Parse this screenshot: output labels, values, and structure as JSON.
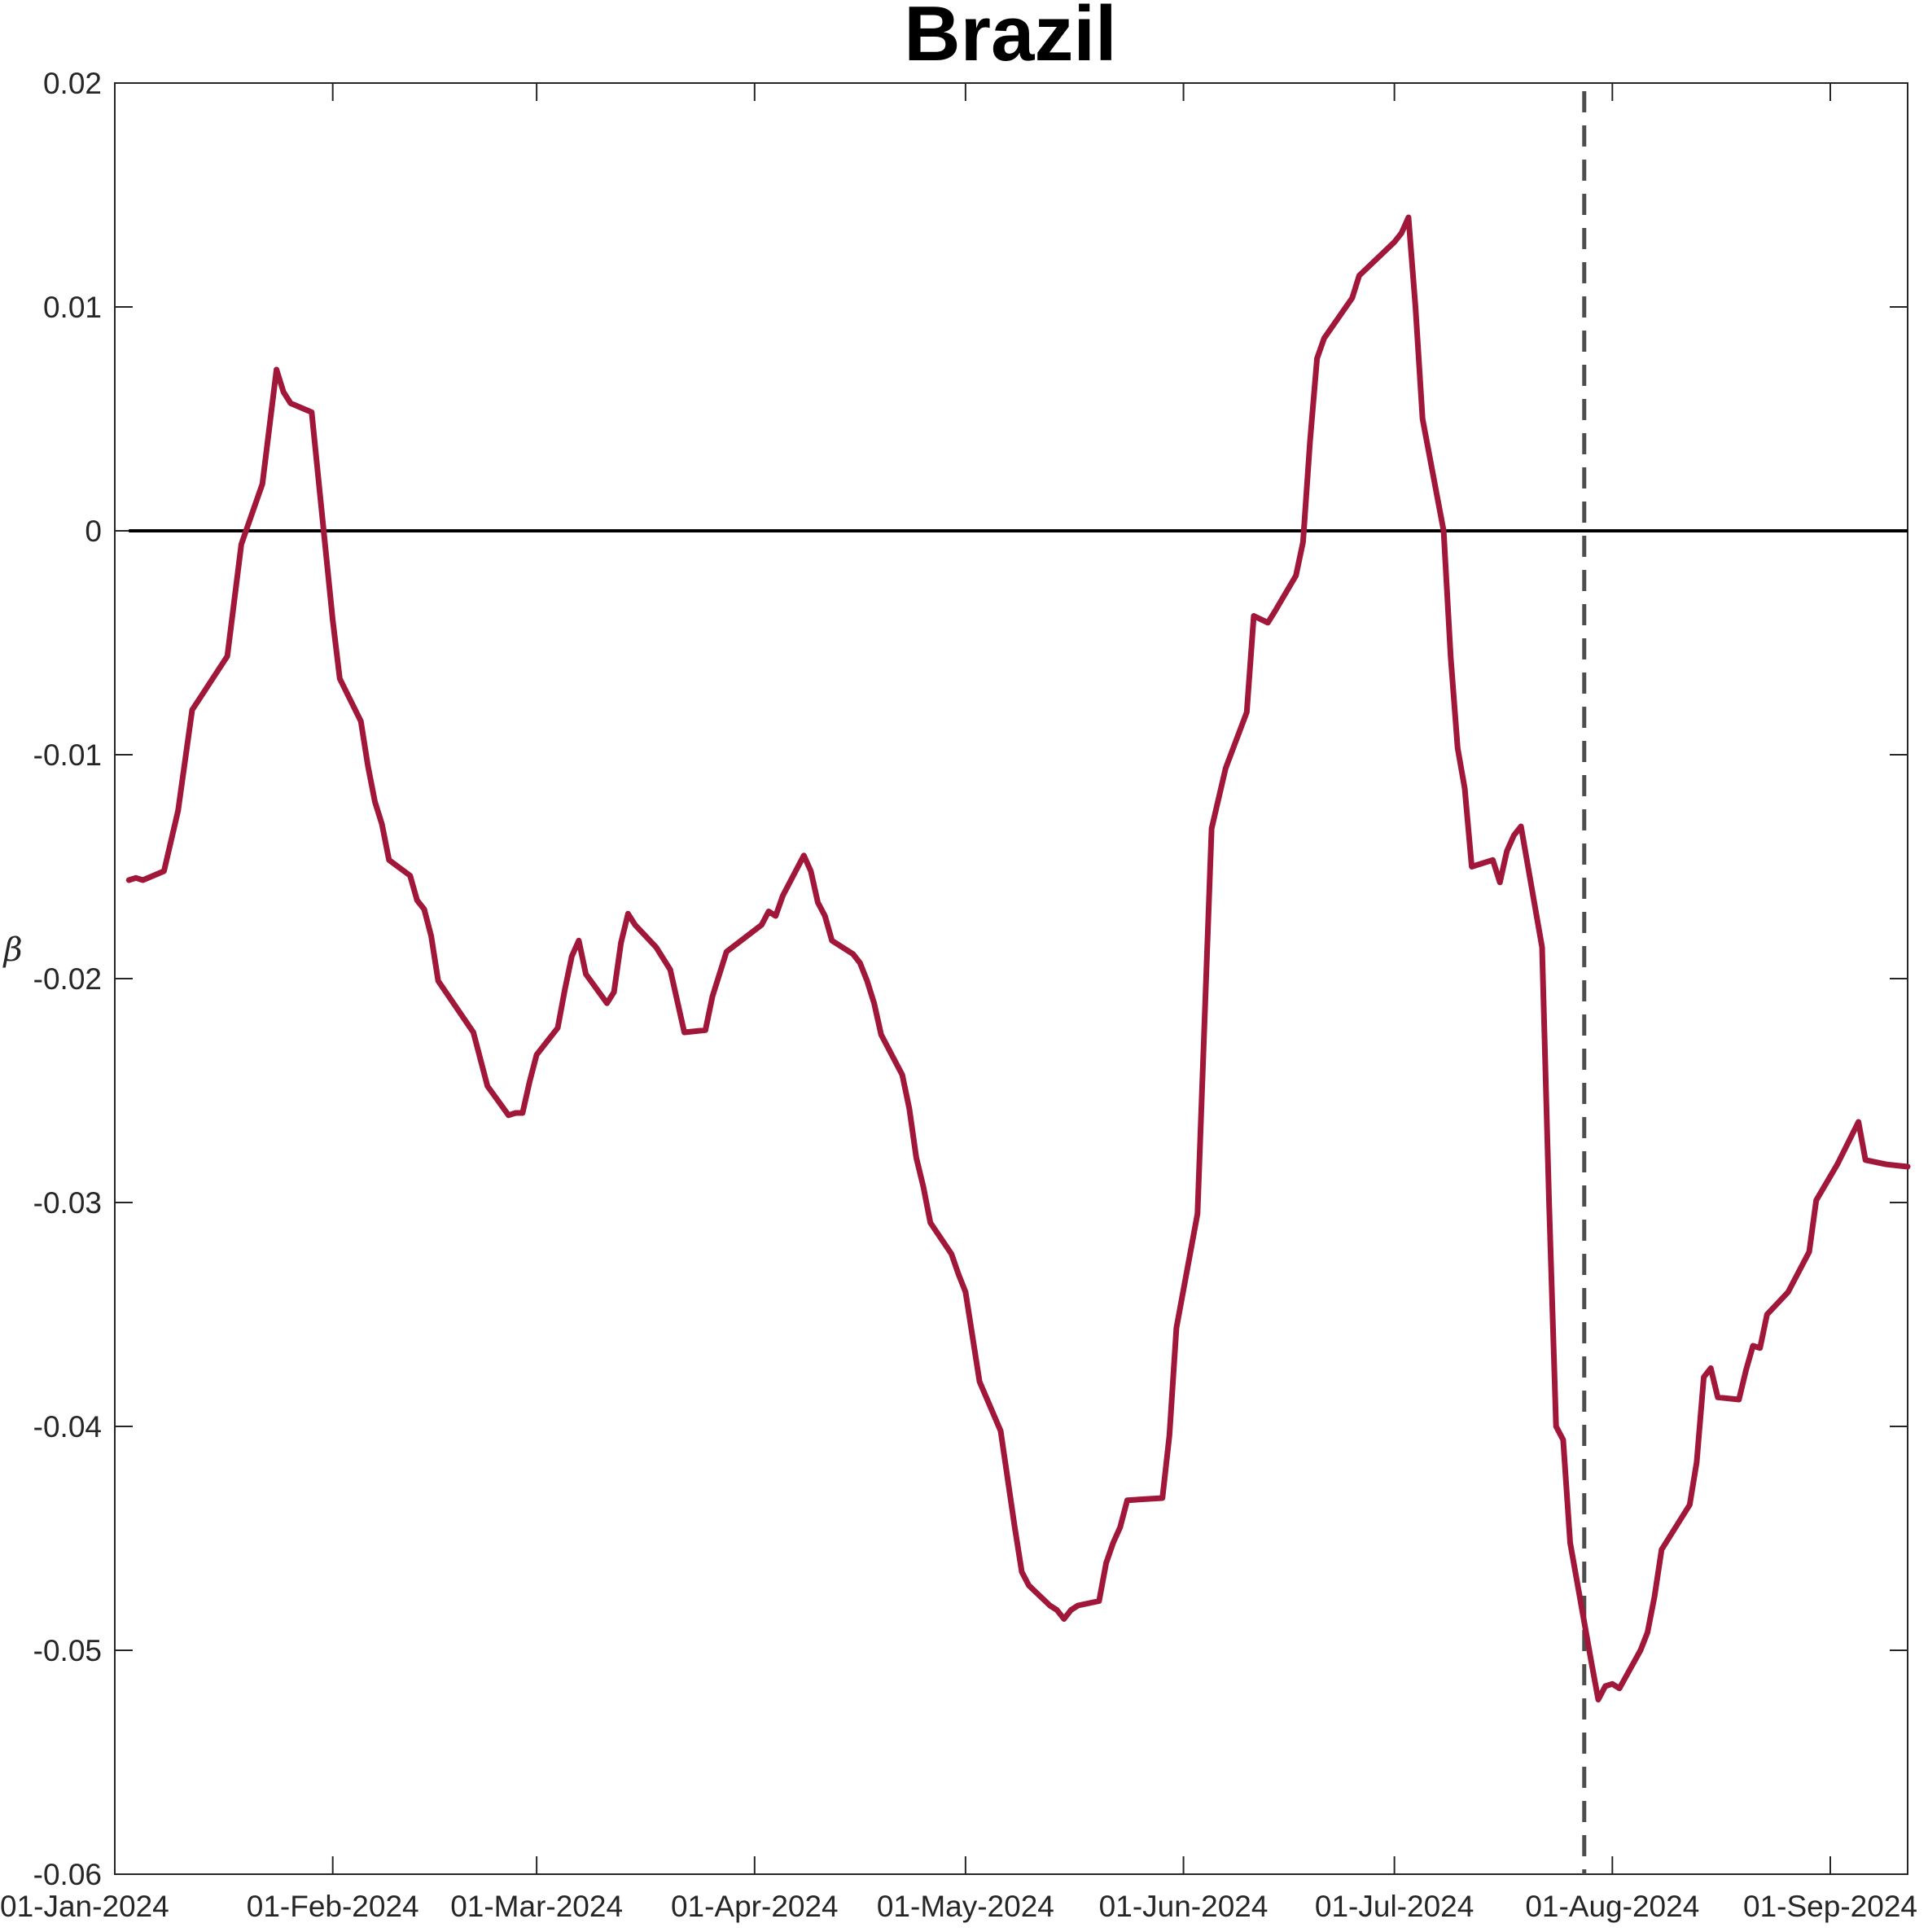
{
  "chart_data": {
    "type": "line",
    "title": "Brazil",
    "xlabel": "",
    "ylabel": "β",
    "ylim": [
      -0.06,
      0.02
    ],
    "xlim": [
      "2024-01-01",
      "2024-09-12"
    ],
    "x_ticks": [
      {
        "date": "2024-01-01",
        "label": "01-Jan-2024"
      },
      {
        "date": "2024-02-01",
        "label": "01-Feb-2024"
      },
      {
        "date": "2024-03-01",
        "label": "01-Mar-2024"
      },
      {
        "date": "2024-04-01",
        "label": "01-Apr-2024"
      },
      {
        "date": "2024-05-01",
        "label": "01-May-2024"
      },
      {
        "date": "2024-06-01",
        "label": "01-Jun-2024"
      },
      {
        "date": "2024-07-01",
        "label": "01-Jul-2024"
      },
      {
        "date": "2024-08-01",
        "label": "01-Aug-2024"
      },
      {
        "date": "2024-09-01",
        "label": "01-Sep-2024"
      }
    ],
    "y_ticks": [
      {
        "value": 0.02,
        "label": "0.02"
      },
      {
        "value": 0.01,
        "label": "0.01"
      },
      {
        "value": 0,
        "label": "0"
      },
      {
        "value": -0.01,
        "label": "-0.01"
      },
      {
        "value": -0.02,
        "label": "-0.02"
      },
      {
        "value": -0.03,
        "label": "-0.03"
      },
      {
        "value": -0.04,
        "label": "-0.04"
      },
      {
        "value": -0.05,
        "label": "-0.05"
      },
      {
        "value": -0.06,
        "label": "-0.06"
      }
    ],
    "grid": false,
    "line_color": "#A0173A",
    "reference_line_color": "#000000",
    "event_line_color": "#4D4D4D",
    "zero_line": {
      "y": 0,
      "x_start": "2024-01-03",
      "x_end": "2024-09-12"
    },
    "event_line": {
      "x": "2024-07-28",
      "style": "dashed"
    },
    "series": [
      {
        "points": [
          [
            "2024-01-03",
            -0.0156
          ],
          [
            "2024-01-04",
            -0.0155
          ],
          [
            "2024-01-05",
            -0.0156
          ],
          [
            "2024-01-08",
            -0.0152
          ],
          [
            "2024-01-10",
            -0.0125
          ],
          [
            "2024-01-12",
            -0.008
          ],
          [
            "2024-01-17",
            -0.0056
          ],
          [
            "2024-01-19",
            -0.0006
          ],
          [
            "2024-01-22",
            0.0021
          ],
          [
            "2024-01-24",
            0.0072
          ],
          [
            "2024-01-25",
            0.0062
          ],
          [
            "2024-01-26",
            0.0057
          ],
          [
            "2024-01-29",
            0.0053
          ],
          [
            "2024-02-01",
            -0.004
          ],
          [
            "2024-02-02",
            -0.0066
          ],
          [
            "2024-02-05",
            -0.0085
          ],
          [
            "2024-02-06",
            -0.0105
          ],
          [
            "2024-02-07",
            -0.0121
          ],
          [
            "2024-02-08",
            -0.0131
          ],
          [
            "2024-02-09",
            -0.0147
          ],
          [
            "2024-02-12",
            -0.0154
          ],
          [
            "2024-02-13",
            -0.0165
          ],
          [
            "2024-02-14",
            -0.0169
          ],
          [
            "2024-02-15",
            -0.0181
          ],
          [
            "2024-02-16",
            -0.0201
          ],
          [
            "2024-02-21",
            -0.0224
          ],
          [
            "2024-02-23",
            -0.0248
          ],
          [
            "2024-02-26",
            -0.0261
          ],
          [
            "2024-02-27",
            -0.026
          ],
          [
            "2024-02-28",
            -0.026
          ],
          [
            "2024-02-29",
            -0.0246
          ],
          [
            "2024-03-01",
            -0.0234
          ],
          [
            "2024-03-04",
            -0.0222
          ],
          [
            "2024-03-05",
            -0.0205
          ],
          [
            "2024-03-06",
            -0.019
          ],
          [
            "2024-03-07",
            -0.0183
          ],
          [
            "2024-03-08",
            -0.0198
          ],
          [
            "2024-03-11",
            -0.0211
          ],
          [
            "2024-03-12",
            -0.0206
          ],
          [
            "2024-03-13",
            -0.0184
          ],
          [
            "2024-03-14",
            -0.0171
          ],
          [
            "2024-03-15",
            -0.0176
          ],
          [
            "2024-03-18",
            -0.0186
          ],
          [
            "2024-03-20",
            -0.0196
          ],
          [
            "2024-03-22",
            -0.0224
          ],
          [
            "2024-03-25",
            -0.0223
          ],
          [
            "2024-03-26",
            -0.0208
          ],
          [
            "2024-03-28",
            -0.0188
          ],
          [
            "2024-04-02",
            -0.0176
          ],
          [
            "2024-04-03",
            -0.017
          ],
          [
            "2024-04-04",
            -0.0172
          ],
          [
            "2024-04-05",
            -0.0163
          ],
          [
            "2024-04-08",
            -0.0145
          ],
          [
            "2024-04-09",
            -0.0152
          ],
          [
            "2024-04-10",
            -0.0166
          ],
          [
            "2024-04-11",
            -0.0172
          ],
          [
            "2024-04-12",
            -0.0183
          ],
          [
            "2024-04-15",
            -0.0189
          ],
          [
            "2024-04-16",
            -0.0193
          ],
          [
            "2024-04-17",
            -0.0201
          ],
          [
            "2024-04-18",
            -0.0211
          ],
          [
            "2024-04-19",
            -0.0225
          ],
          [
            "2024-04-22",
            -0.0243
          ],
          [
            "2024-04-23",
            -0.0258
          ],
          [
            "2024-04-24",
            -0.028
          ],
          [
            "2024-04-25",
            -0.0293
          ],
          [
            "2024-04-26",
            -0.0309
          ],
          [
            "2024-04-29",
            -0.0323
          ],
          [
            "2024-04-30",
            -0.0332
          ],
          [
            "2024-05-01",
            -0.034
          ],
          [
            "2024-05-02",
            -0.036
          ],
          [
            "2024-05-03",
            -0.038
          ],
          [
            "2024-05-06",
            -0.0402
          ],
          [
            "2024-05-08",
            -0.0445
          ],
          [
            "2024-05-09",
            -0.0465
          ],
          [
            "2024-05-10",
            -0.0471
          ],
          [
            "2024-05-13",
            -0.048
          ],
          [
            "2024-05-14",
            -0.0482
          ],
          [
            "2024-05-15",
            -0.0486
          ],
          [
            "2024-05-16",
            -0.0482
          ],
          [
            "2024-05-17",
            -0.048
          ],
          [
            "2024-05-20",
            -0.0478
          ],
          [
            "2024-05-21",
            -0.0461
          ],
          [
            "2024-05-22",
            -0.0452
          ],
          [
            "2024-05-23",
            -0.0445
          ],
          [
            "2024-05-24",
            -0.0433
          ],
          [
            "2024-05-29",
            -0.0432
          ],
          [
            "2024-05-30",
            -0.0404
          ],
          [
            "2024-05-31",
            -0.0356
          ],
          [
            "2024-06-03",
            -0.0305
          ],
          [
            "2024-06-05",
            -0.0133
          ],
          [
            "2024-06-07",
            -0.0106
          ],
          [
            "2024-06-10",
            -0.0081
          ],
          [
            "2024-06-11",
            -0.0038
          ],
          [
            "2024-06-13",
            -0.0041
          ],
          [
            "2024-06-14",
            -0.0036
          ],
          [
            "2024-06-17",
            -0.002
          ],
          [
            "2024-06-18",
            -0.0005
          ],
          [
            "2024-06-19",
            0.004
          ],
          [
            "2024-06-20",
            0.0077
          ],
          [
            "2024-06-21",
            0.0086
          ],
          [
            "2024-06-25",
            0.0104
          ],
          [
            "2024-06-26",
            0.0114
          ],
          [
            "2024-07-01",
            0.0129
          ],
          [
            "2024-07-02",
            0.0133
          ],
          [
            "2024-07-03",
            0.014
          ],
          [
            "2024-07-04",
            0.01
          ],
          [
            "2024-07-05",
            0.005
          ],
          [
            "2024-07-08",
            0.0
          ],
          [
            "2024-07-09",
            -0.0056
          ],
          [
            "2024-07-10",
            -0.0097
          ],
          [
            "2024-07-11",
            -0.0115
          ],
          [
            "2024-07-12",
            -0.015
          ],
          [
            "2024-07-15",
            -0.0147
          ],
          [
            "2024-07-16",
            -0.0157
          ],
          [
            "2024-07-17",
            -0.0143
          ],
          [
            "2024-07-18",
            -0.0136
          ],
          [
            "2024-07-19",
            -0.0132
          ],
          [
            "2024-07-22",
            -0.0186
          ],
          [
            "2024-07-23",
            -0.03
          ],
          [
            "2024-07-24",
            -0.04
          ],
          [
            "2024-07-25",
            -0.0406
          ],
          [
            "2024-07-26",
            -0.0452
          ],
          [
            "2024-07-29",
            -0.0505
          ],
          [
            "2024-07-30",
            -0.0522
          ],
          [
            "2024-07-31",
            -0.0516
          ],
          [
            "2024-08-01",
            -0.0515
          ],
          [
            "2024-08-02",
            -0.0517
          ],
          [
            "2024-08-05",
            -0.05
          ],
          [
            "2024-08-06",
            -0.0492
          ],
          [
            "2024-08-07",
            -0.0476
          ],
          [
            "2024-08-08",
            -0.0455
          ],
          [
            "2024-08-12",
            -0.0435
          ],
          [
            "2024-08-13",
            -0.0416
          ],
          [
            "2024-08-14",
            -0.0378
          ],
          [
            "2024-08-15",
            -0.0374
          ],
          [
            "2024-08-16",
            -0.0387
          ],
          [
            "2024-08-19",
            -0.0388
          ],
          [
            "2024-08-20",
            -0.0375
          ],
          [
            "2024-08-21",
            -0.0364
          ],
          [
            "2024-08-22",
            -0.0365
          ],
          [
            "2024-08-23",
            -0.035
          ],
          [
            "2024-08-26",
            -0.034
          ],
          [
            "2024-08-29",
            -0.0322
          ],
          [
            "2024-08-30",
            -0.0299
          ],
          [
            "2024-09-02",
            -0.0283
          ],
          [
            "2024-09-05",
            -0.0264
          ],
          [
            "2024-09-06",
            -0.0281
          ],
          [
            "2024-09-09",
            -0.0283
          ],
          [
            "2024-09-12",
            -0.0284
          ]
        ]
      }
    ]
  }
}
